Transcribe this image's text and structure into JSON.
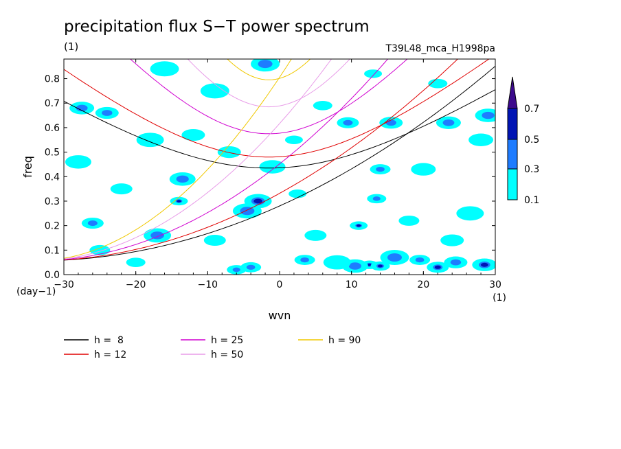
{
  "chart_data": {
    "type": "heatmap",
    "title": "precipitation flux S−T power spectrum",
    "title_unit": "(1)",
    "run_label": "T39L48_mca_H1998pa",
    "xlabel": "wvn",
    "ylabel": "freq",
    "x_unit": "(1)",
    "y_unit": "(day−1)",
    "xlim": [
      -30,
      30
    ],
    "ylim": [
      0,
      0.88
    ],
    "x_ticks": [
      -30,
      -20,
      -10,
      0,
      10,
      20,
      30
    ],
    "y_ticks": [
      0.0,
      0.1,
      0.2,
      0.3,
      0.4,
      0.5,
      0.6,
      0.7,
      0.8
    ],
    "colorbar": {
      "levels": [
        0.1,
        0.3,
        0.5,
        0.7
      ],
      "colors": [
        "#00ffff",
        "#1e7cff",
        "#0014b4",
        "#3c0a8c"
      ],
      "extend": "max"
    },
    "contour_blobs": [
      {
        "k": 12.5,
        "f": 0.04,
        "level": 2
      },
      {
        "k": 14.0,
        "f": 0.035,
        "level": 2
      },
      {
        "k": 19.5,
        "f": 0.06,
        "level": 1
      },
      {
        "k": 22.0,
        "f": 0.03,
        "level": 2
      },
      {
        "k": 24.5,
        "f": 0.05,
        "level": 1
      },
      {
        "k": 28.5,
        "f": 0.04,
        "level": 2
      },
      {
        "k": 10.5,
        "f": 0.035,
        "level": 1
      },
      {
        "k": 8.0,
        "f": 0.05,
        "level": 0
      },
      {
        "k": 16.0,
        "f": 0.07,
        "level": 1
      },
      {
        "k": 11.0,
        "f": 0.2,
        "level": 2
      },
      {
        "k": 13.5,
        "f": 0.31,
        "level": 1
      },
      {
        "k": 14.0,
        "f": 0.43,
        "level": 1
      },
      {
        "k": 9.5,
        "f": 0.62,
        "level": 1
      },
      {
        "k": 15.5,
        "f": 0.62,
        "level": 1
      },
      {
        "k": 23.5,
        "f": 0.62,
        "level": 1
      },
      {
        "k": 29.0,
        "f": 0.65,
        "level": 1
      },
      {
        "k": -3.0,
        "f": 0.3,
        "level": 2
      },
      {
        "k": -4.5,
        "f": 0.26,
        "level": 1
      },
      {
        "k": -14.0,
        "f": 0.3,
        "level": 2
      },
      {
        "k": -6.0,
        "f": 0.02,
        "level": 1
      },
      {
        "k": -4.0,
        "f": 0.03,
        "level": 1
      },
      {
        "k": -26.0,
        "f": 0.21,
        "level": 1
      },
      {
        "k": -24.0,
        "f": 0.66,
        "level": 1
      },
      {
        "k": -27.5,
        "f": 0.68,
        "level": 1
      },
      {
        "k": -13.5,
        "f": 0.39,
        "level": 1
      },
      {
        "k": -17.0,
        "f": 0.16,
        "level": 1
      },
      {
        "k": -2.0,
        "f": 0.86,
        "level": 1
      },
      {
        "k": 2.5,
        "f": 0.33,
        "level": 0
      },
      {
        "k": -20.0,
        "f": 0.05,
        "level": 0
      },
      {
        "k": 3.5,
        "f": 0.06,
        "level": 1
      },
      {
        "k": -9.0,
        "f": 0.14,
        "level": 0
      },
      {
        "k": 24.0,
        "f": 0.14,
        "level": 0
      },
      {
        "k": 28.0,
        "f": 0.55,
        "level": 0
      },
      {
        "k": -28.0,
        "f": 0.46,
        "level": 0
      },
      {
        "k": -18.0,
        "f": 0.55,
        "level": 0
      },
      {
        "k": -9.0,
        "f": 0.75,
        "level": 0
      },
      {
        "k": 2.0,
        "f": 0.55,
        "level": 0
      },
      {
        "k": 6.0,
        "f": 0.69,
        "level": 0
      },
      {
        "k": 18.0,
        "f": 0.22,
        "level": 0
      },
      {
        "k": -22.0,
        "f": 0.35,
        "level": 0
      },
      {
        "k": -12.0,
        "f": 0.57,
        "level": 0
      },
      {
        "k": 20.0,
        "f": 0.43,
        "level": 0
      },
      {
        "k": -1.0,
        "f": 0.44,
        "level": 0
      },
      {
        "k": 26.5,
        "f": 0.25,
        "level": 0
      },
      {
        "k": -16.0,
        "f": 0.84,
        "level": 0
      },
      {
        "k": 13.0,
        "f": 0.82,
        "level": 0
      },
      {
        "k": 22.0,
        "f": 0.78,
        "level": 0
      },
      {
        "k": -25.0,
        "f": 0.1,
        "level": 0
      },
      {
        "k": 5.0,
        "f": 0.16,
        "level": 0
      },
      {
        "k": -7.0,
        "f": 0.5,
        "level": 0
      }
    ],
    "series": [
      {
        "name": "h =  8",
        "color": "#000000",
        "family": "kelvin-ig",
        "f0": 0.435,
        "kelvin_slope": 0.0196
      },
      {
        "name": "h = 12",
        "color": "#e00000",
        "family": "kelvin-ig",
        "f0": 0.48,
        "kelvin_slope": 0.0241
      },
      {
        "name": "h = 25",
        "color": "#d000d0",
        "family": "kelvin-ig",
        "f0": 0.575,
        "kelvin_slope": 0.0346
      },
      {
        "name": "h = 50",
        "color": "#e89be8",
        "family": "kelvin-ig",
        "f0": 0.685,
        "kelvin_slope": 0.049
      },
      {
        "name": "h = 90",
        "color": "#f0c800",
        "family": "kelvin-ig",
        "f0": 0.795,
        "kelvin_slope": 0.0655
      }
    ]
  },
  "legend": {
    "items": [
      {
        "label": "h =  8",
        "color": "#000000"
      },
      {
        "label": "h = 12",
        "color": "#e00000"
      },
      {
        "label": "h = 25",
        "color": "#d000d0"
      },
      {
        "label": "h = 50",
        "color": "#e89be8"
      },
      {
        "label": "h = 90",
        "color": "#f0c800"
      }
    ]
  }
}
